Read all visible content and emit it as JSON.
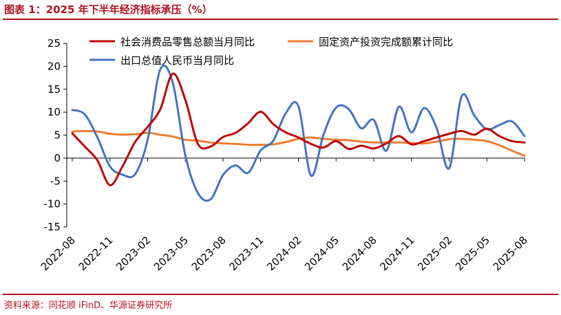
{
  "header": {
    "title": "图表 1：2025 年下半年经济指标承压（%）"
  },
  "footer": {
    "source": "资料来源：同花顺 iFinD、华源证券研究所"
  },
  "chart_data": {
    "type": "line",
    "title": "2025 年下半年经济指标承压（%）",
    "xlabel": "",
    "ylabel": "",
    "ylim": [
      -15,
      25
    ],
    "yticks": [
      -15,
      -10,
      -5,
      0,
      5,
      10,
      15,
      20,
      25
    ],
    "x_tick_labels": [
      "2022-08",
      "2022-11",
      "2023-02",
      "2023-05",
      "2023-08",
      "2023-11",
      "2024-02",
      "2024-05",
      "2024-08",
      "2024-11",
      "2025-02",
      "2025-05",
      "2025-08"
    ],
    "x": [
      "2022-08",
      "2022-09",
      "2022-10",
      "2022-11",
      "2022-12",
      "2023-01",
      "2023-02",
      "2023-03",
      "2023-04",
      "2023-05",
      "2023-06",
      "2023-07",
      "2023-08",
      "2023-09",
      "2023-10",
      "2023-11",
      "2023-12",
      "2024-01",
      "2024-02",
      "2024-03",
      "2024-04",
      "2024-05",
      "2024-06",
      "2024-07",
      "2024-08",
      "2024-09",
      "2024-10",
      "2024-11",
      "2024-12",
      "2025-01",
      "2025-02",
      "2025-03",
      "2025-04",
      "2025-05",
      "2025-06",
      "2025-07",
      "2025-08"
    ],
    "legend_placement": "top",
    "series": [
      {
        "name": "社会消费品零售总额当月同比",
        "color": "#c00000",
        "values": [
          5.4,
          2.5,
          -0.5,
          -5.9,
          -1.8,
          3.5,
          6.8,
          10.6,
          18.4,
          12.7,
          3.1,
          2.5,
          4.6,
          5.5,
          7.6,
          10.1,
          7.4,
          5.6,
          4.5,
          3.1,
          2.3,
          3.7,
          2.0,
          2.7,
          2.1,
          3.2,
          4.8,
          3.0,
          3.7,
          4.5,
          5.3,
          5.9,
          5.1,
          6.4,
          4.8,
          3.7,
          3.4
        ]
      },
      {
        "name": "固定资产投资完成额累计同比",
        "color": "#ed7d31",
        "values": [
          5.8,
          5.9,
          5.8,
          5.3,
          5.1,
          5.2,
          5.5,
          5.1,
          4.7,
          4.0,
          3.8,
          3.4,
          3.2,
          3.1,
          2.9,
          2.9,
          3.0,
          3.5,
          4.2,
          4.5,
          4.2,
          4.0,
          3.9,
          3.6,
          3.4,
          3.4,
          3.4,
          3.3,
          3.2,
          3.6,
          4.1,
          4.2,
          4.0,
          3.7,
          2.8,
          1.6,
          0.5
        ]
      },
      {
        "name": "出口总值人民币当月同比",
        "color": "#4472c4",
        "values": [
          10.5,
          9.5,
          4.5,
          -1.8,
          -3.6,
          -3.5,
          4.0,
          19.3,
          16.4,
          0.6,
          -7.6,
          -9.0,
          -3.7,
          -1.6,
          -3.2,
          1.7,
          3.8,
          9.8,
          11.3,
          -3.8,
          5.1,
          11.0,
          10.7,
          6.5,
          8.3,
          1.6,
          11.2,
          5.6,
          10.9,
          6.6,
          -2.2,
          13.5,
          9.3,
          6.3,
          7.2,
          8.0,
          4.8
        ]
      }
    ]
  }
}
